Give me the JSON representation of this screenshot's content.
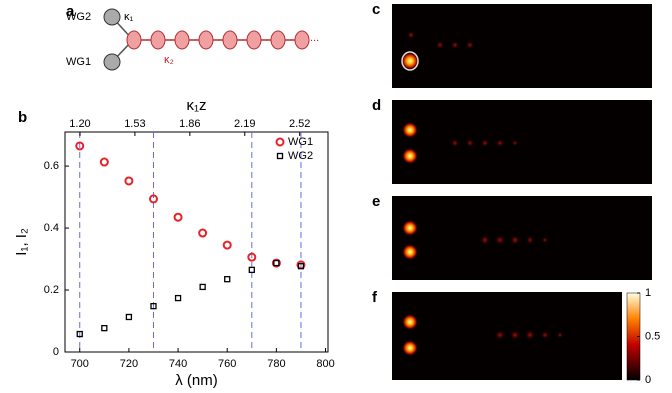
{
  "panels": [
    "a",
    "b",
    "c",
    "d",
    "e",
    "f"
  ],
  "diagram": {
    "wg2": "WG2",
    "wg1": "WG1",
    "kappa1": "κ₁",
    "kappa2": "κ₂",
    "ellipsis": "..."
  },
  "colorbar": {
    "ticks": [
      {
        "value": 1,
        "label": "1"
      },
      {
        "value": 0.5,
        "label": "0.5"
      },
      {
        "value": 0,
        "label": "0"
      }
    ]
  },
  "chart_data": {
    "type": "scatter",
    "x_label": "λ (nm)",
    "y_label": "I₁, I₂",
    "x2_label": "κ₁z",
    "x": [
      700,
      710,
      720,
      730,
      740,
      750,
      760,
      770,
      780,
      790
    ],
    "series": [
      {
        "name": "WG1",
        "color": "#e8202a",
        "marker": "circle",
        "values": [
          0.665,
          0.613,
          0.552,
          0.494,
          0.435,
          0.384,
          0.345,
          0.306,
          0.287,
          0.281
        ]
      },
      {
        "name": "WG2",
        "color": "#000000",
        "marker": "square",
        "values": [
          0.058,
          0.077,
          0.113,
          0.148,
          0.174,
          0.21,
          0.235,
          0.265,
          0.287,
          0.277
        ]
      }
    ],
    "xlim": [
      694,
      801
    ],
    "xticks": [
      700,
      720,
      740,
      760,
      780,
      800
    ],
    "ylim": [
      0,
      0.71
    ],
    "yticks": [
      0,
      0.2,
      0.4,
      0.6
    ],
    "x2lim": [
      1.11,
      2.69
    ],
    "x2ticks": [
      {
        "value": 1.2,
        "label": "1.20"
      },
      1.53,
      1.86,
      2.19,
      2.52
    ],
    "vlines": [
      700,
      730,
      770,
      790
    ],
    "vline_color": "#6a6ae8",
    "legend": "upper right"
  }
}
